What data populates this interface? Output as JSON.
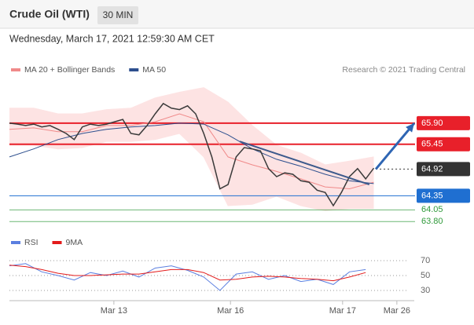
{
  "chart_data": [
    {
      "type": "line",
      "title": "Crude Oil (WTI)",
      "timeframe": "30 MIN",
      "subtitle": "Wednesday, March 17, 2021 12:59:30 AM CET",
      "source": "Research © 2021 Trading Central",
      "xlim": [
        0,
        100
      ],
      "xticks": [
        {
          "value": 25.8,
          "label": "Mar 13"
        },
        {
          "value": 54.6,
          "label": "Mar 16"
        },
        {
          "value": 82.3,
          "label": "Mar 17"
        },
        {
          "value": 95.7,
          "label": "Mar 26"
        }
      ],
      "ylim": [
        63.67,
        66.77
      ],
      "price": {
        "color": "#3a3a3a",
        "x": [
          0,
          2,
          4,
          6,
          8,
          10,
          12,
          14,
          16,
          18,
          20,
          22,
          24,
          26,
          28,
          30,
          32,
          34,
          36,
          38,
          40,
          42,
          44,
          46,
          48,
          50,
          52,
          54,
          56,
          58,
          60,
          62,
          64,
          66,
          68,
          70,
          72,
          74,
          76,
          78,
          80,
          82,
          84,
          86,
          88,
          90
        ],
        "values": [
          65.9,
          65.88,
          65.85,
          65.88,
          65.82,
          65.85,
          65.77,
          65.68,
          65.55,
          65.82,
          65.88,
          65.85,
          65.88,
          65.93,
          65.98,
          65.68,
          65.65,
          65.85,
          66.1,
          66.32,
          66.22,
          66.19,
          66.27,
          66.1,
          65.68,
          65.18,
          64.5,
          64.59,
          65.18,
          65.38,
          65.35,
          65.31,
          64.93,
          64.76,
          64.84,
          64.81,
          64.67,
          64.64,
          64.47,
          64.42,
          64.14,
          64.42,
          64.76,
          64.93,
          64.71,
          64.94
        ]
      },
      "series": [
        {
          "name": "MA 20 + Bollinger Bands",
          "color": "#f08a8a",
          "band_color": "#fde3e3",
          "x": [
            0,
            6,
            12,
            18,
            24,
            30,
            36,
            42,
            48,
            54,
            60,
            66,
            72,
            78,
            84,
            90
          ],
          "values": [
            65.77,
            65.8,
            65.72,
            65.72,
            65.85,
            65.85,
            65.93,
            66.1,
            65.93,
            65.18,
            65.01,
            64.87,
            64.71,
            64.54,
            64.5,
            64.64
          ],
          "upper": [
            66.22,
            66.22,
            66.1,
            66.1,
            66.19,
            66.22,
            66.44,
            66.56,
            66.66,
            66.35,
            65.85,
            65.43,
            65.26,
            65.01,
            65.09,
            65.18
          ],
          "lower": [
            65.43,
            65.43,
            65.35,
            65.38,
            65.51,
            65.51,
            65.55,
            65.68,
            65.18,
            64.14,
            64.17,
            64.34,
            64.14,
            64.03,
            64.08,
            64.08
          ]
        },
        {
          "name": "MA 50",
          "color": "#2d4f8e",
          "x": [
            0,
            6,
            12,
            18,
            24,
            30,
            36,
            42,
            48,
            54,
            60,
            66,
            72,
            78,
            84,
            90
          ],
          "values": [
            65.18,
            65.35,
            65.55,
            65.68,
            65.77,
            65.82,
            65.85,
            65.9,
            65.88,
            65.65,
            65.35,
            65.13,
            64.98,
            64.81,
            64.67,
            64.61
          ]
        }
      ],
      "trendline": {
        "color": "#3d5a8c",
        "x": [
          56.9,
          88.9
        ],
        "values": [
          65.51,
          64.59
        ]
      },
      "arrow": {
        "color": "#2e65b3",
        "x": [
          90.5,
          100
        ],
        "values": [
          64.92,
          65.9
        ]
      },
      "levels": [
        {
          "value": 65.9,
          "label": "65.90",
          "color": "#e8202a",
          "line": "solid",
          "style": "box"
        },
        {
          "value": 65.45,
          "color": "#e8202a",
          "line": "solid",
          "style": "box"
        },
        {
          "value": 64.92,
          "color": "#333333",
          "line": "dotted",
          "style": "box"
        },
        {
          "value": 64.35,
          "color": "#1f6fd1",
          "line": "solid",
          "style": "box"
        },
        {
          "value": 64.05,
          "color": "#2f9a3a",
          "line": "solid",
          "style": "text"
        },
        {
          "value": 63.8,
          "label": "63.80",
          "color": "#2f9a3a",
          "line": "solid",
          "style": "text"
        }
      ]
    },
    {
      "type": "line",
      "ylim": [
        20,
        80
      ],
      "yticks": [
        30,
        50,
        70
      ],
      "grid": true,
      "series": [
        {
          "name": "RSI",
          "color": "#5b7fe0",
          "x": [
            0,
            4,
            8,
            12,
            16,
            20,
            24,
            28,
            32,
            36,
            40,
            44,
            48,
            52,
            56,
            60,
            64,
            68,
            72,
            76,
            80,
            84,
            88
          ],
          "values": [
            63,
            66,
            55,
            50,
            44,
            54,
            50,
            56,
            48,
            60,
            63,
            57,
            48,
            30,
            52,
            55,
            45,
            50,
            42,
            45,
            38,
            55,
            58
          ]
        },
        {
          "name": "9MA",
          "color": "#e31b1b",
          "x": [
            0,
            4,
            8,
            12,
            16,
            20,
            24,
            28,
            32,
            36,
            40,
            44,
            48,
            52,
            56,
            60,
            64,
            68,
            72,
            76,
            80,
            84,
            88
          ],
          "values": [
            64,
            62,
            58,
            53,
            50,
            50,
            51,
            52,
            52,
            55,
            58,
            58,
            54,
            44,
            45,
            48,
            49,
            48,
            46,
            45,
            43,
            48,
            54
          ]
        }
      ]
    }
  ]
}
